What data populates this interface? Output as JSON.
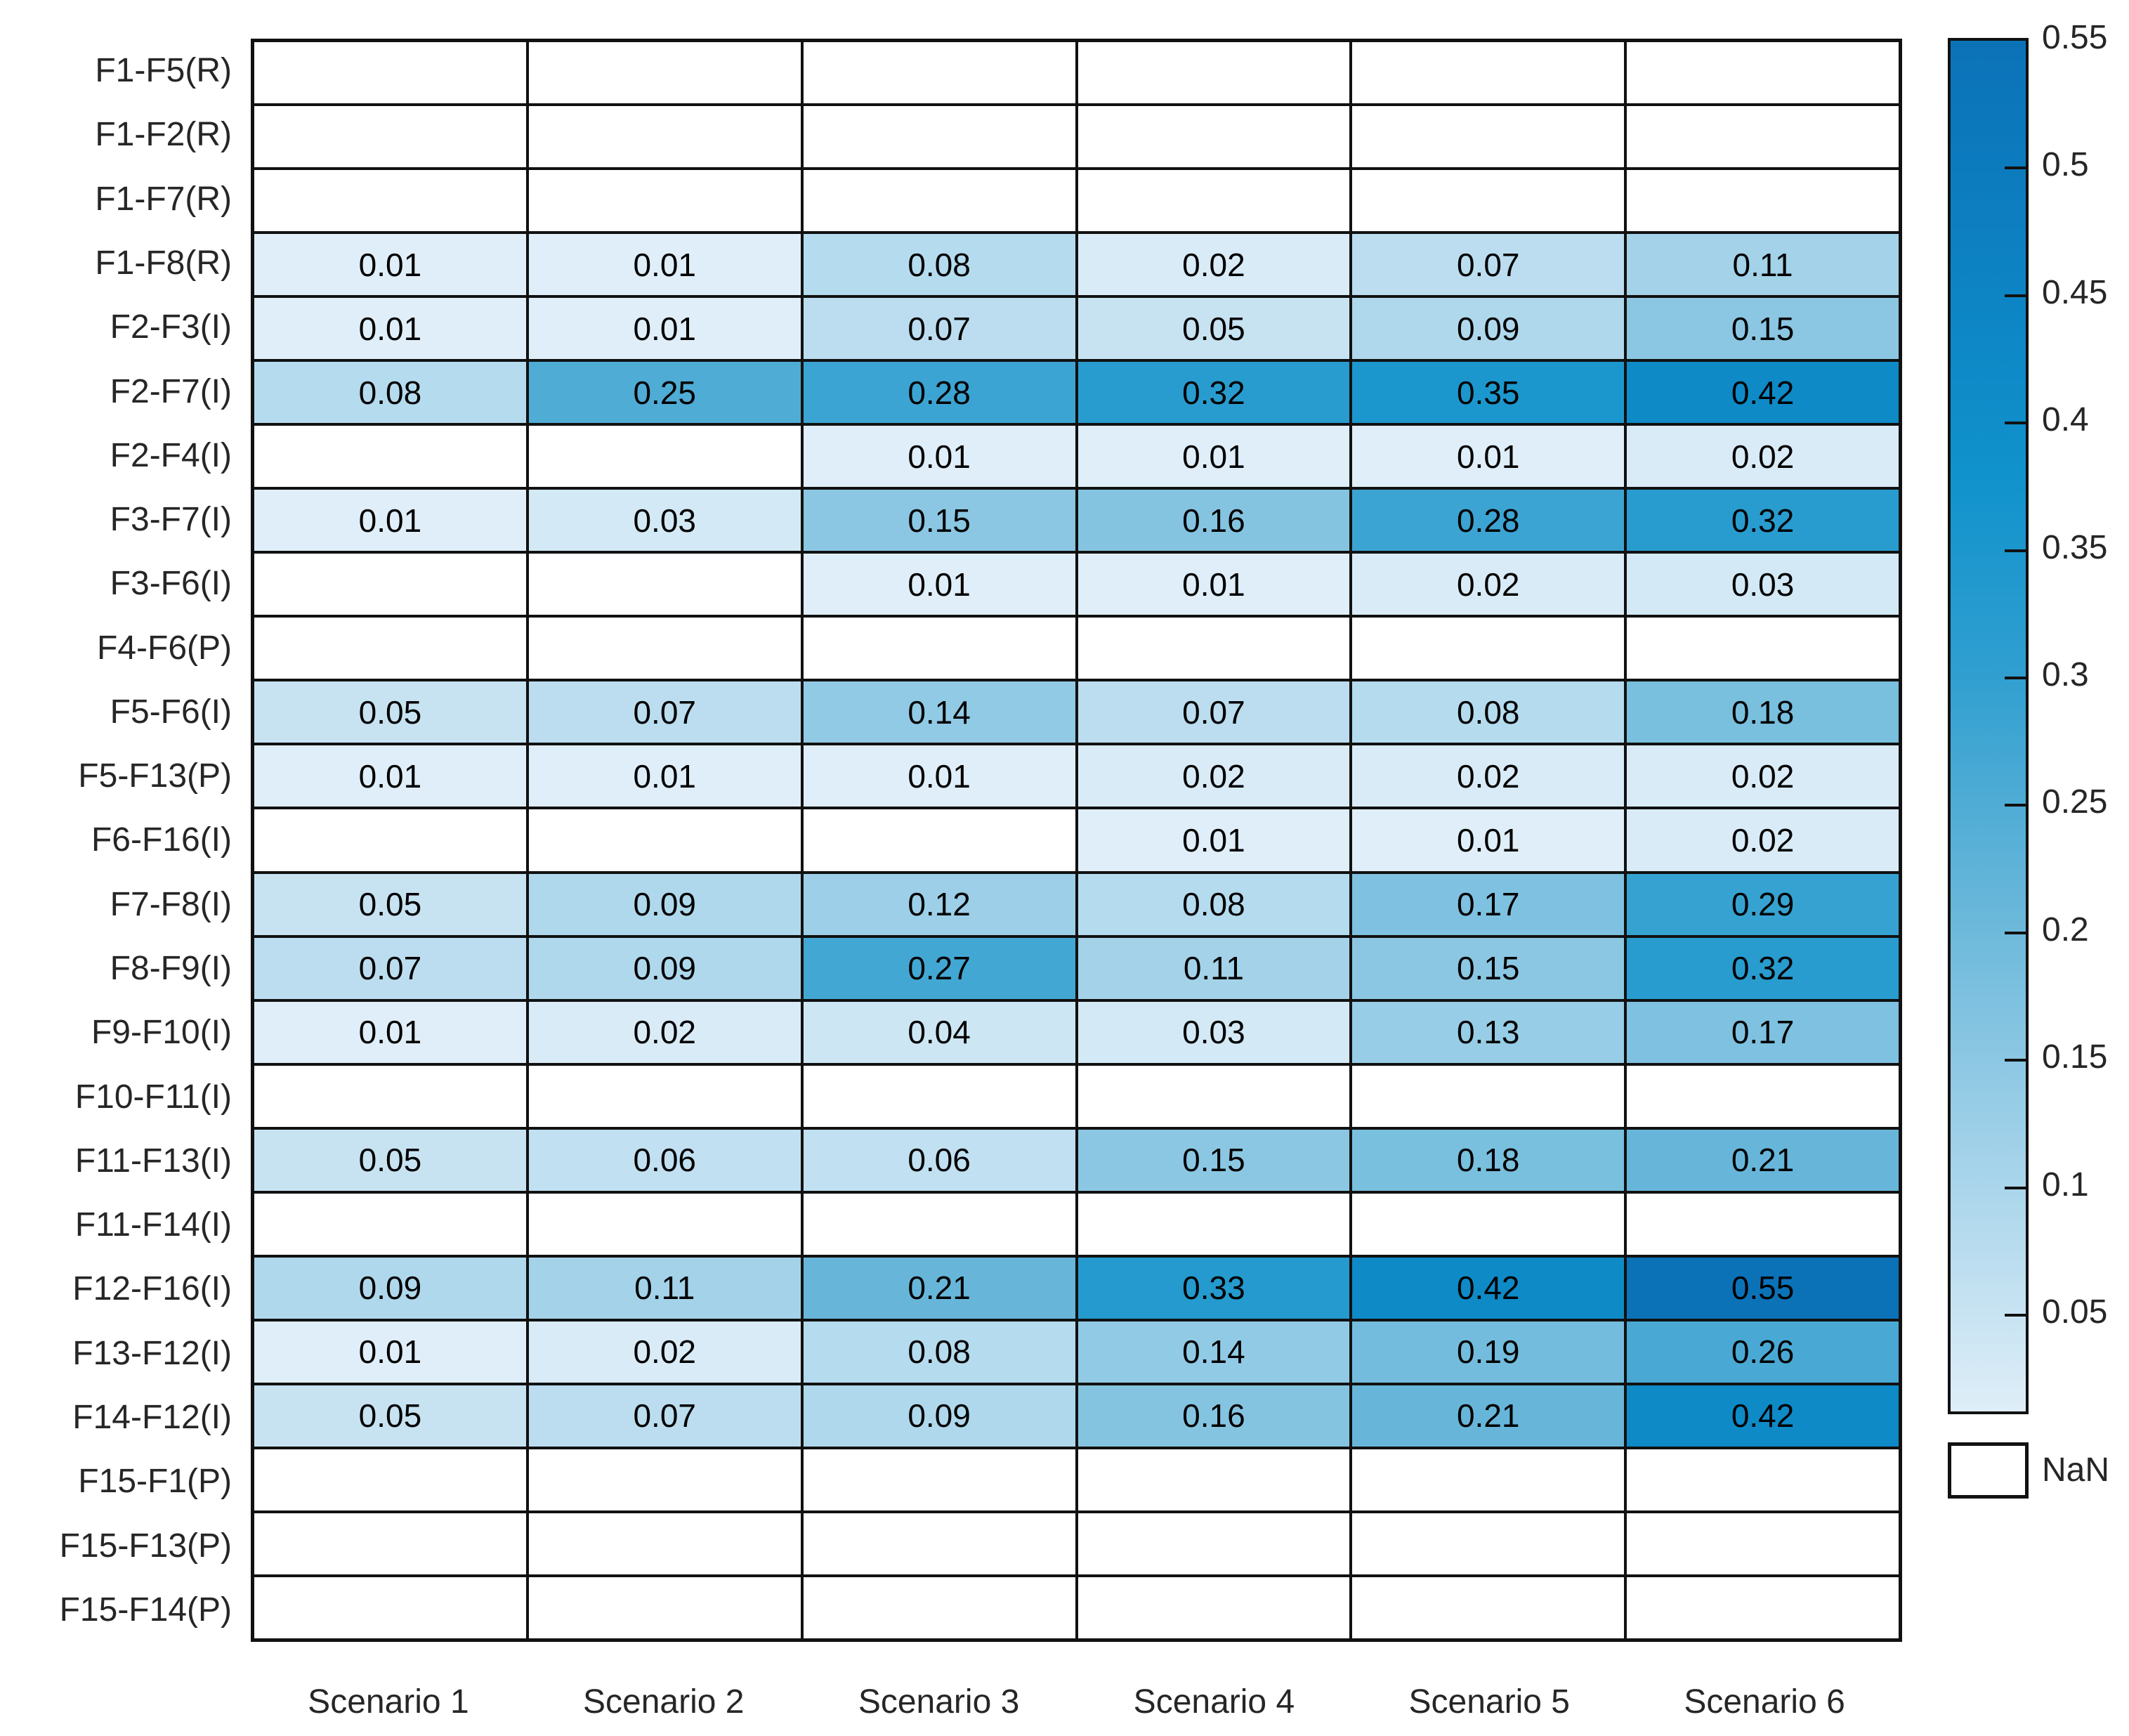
{
  "chart_data": {
    "type": "heatmap",
    "title": "",
    "xlabel": "",
    "ylabel": "",
    "x_categories": [
      "Scenario 1",
      "Scenario 2",
      "Scenario 3",
      "Scenario 4",
      "Scenario 5",
      "Scenario 6"
    ],
    "y_categories": [
      "F1-F5(R)",
      "F1-F2(R)",
      "F1-F7(R)",
      "F1-F8(R)",
      "F2-F3(I)",
      "F2-F7(I)",
      "F2-F4(I)",
      "F3-F7(I)",
      "F3-F6(I)",
      "F4-F6(P)",
      "F5-F6(I)",
      "F5-F13(P)",
      "F6-F16(I)",
      "F7-F8(I)",
      "F8-F9(I)",
      "F9-F10(I)",
      "F10-F11(I)",
      "F11-F13(I)",
      "F11-F14(I)",
      "F12-F16(I)",
      "F13-F12(I)",
      "F14-F12(I)",
      "F15-F1(P)",
      "F15-F13(P)",
      "F15-F14(P)"
    ],
    "values": [
      [
        null,
        null,
        null,
        null,
        null,
        null
      ],
      [
        null,
        null,
        null,
        null,
        null,
        null
      ],
      [
        null,
        null,
        null,
        null,
        null,
        null
      ],
      [
        0.01,
        0.01,
        0.08,
        0.02,
        0.07,
        0.11
      ],
      [
        0.01,
        0.01,
        0.07,
        0.05,
        0.09,
        0.15
      ],
      [
        0.08,
        0.25,
        0.28,
        0.32,
        0.35,
        0.42
      ],
      [
        null,
        null,
        0.01,
        0.01,
        0.01,
        0.02
      ],
      [
        0.01,
        0.03,
        0.15,
        0.16,
        0.28,
        0.32
      ],
      [
        null,
        null,
        0.01,
        0.01,
        0.02,
        0.03
      ],
      [
        null,
        null,
        null,
        null,
        null,
        null
      ],
      [
        0.05,
        0.07,
        0.14,
        0.07,
        0.08,
        0.18
      ],
      [
        0.01,
        0.01,
        0.01,
        0.02,
        0.02,
        0.02
      ],
      [
        null,
        null,
        null,
        0.01,
        0.01,
        0.02
      ],
      [
        0.05,
        0.09,
        0.12,
        0.08,
        0.17,
        0.29
      ],
      [
        0.07,
        0.09,
        0.27,
        0.11,
        0.15,
        0.32
      ],
      [
        0.01,
        0.02,
        0.04,
        0.03,
        0.13,
        0.17
      ],
      [
        null,
        null,
        null,
        null,
        null,
        null
      ],
      [
        0.05,
        0.06,
        0.06,
        0.15,
        0.18,
        0.21
      ],
      [
        null,
        null,
        null,
        null,
        null,
        null
      ],
      [
        0.09,
        0.11,
        0.21,
        0.33,
        0.42,
        0.55
      ],
      [
        0.01,
        0.02,
        0.08,
        0.14,
        0.19,
        0.26
      ],
      [
        0.05,
        0.07,
        0.09,
        0.16,
        0.21,
        0.42
      ],
      [
        null,
        null,
        null,
        null,
        null,
        null
      ],
      [
        null,
        null,
        null,
        null,
        null,
        null
      ],
      [
        null,
        null,
        null,
        null,
        null,
        null
      ]
    ],
    "value_format_decimals": 2,
    "nan_rendering": "blank white cell",
    "grid_line_color": "#111111",
    "colorbar": {
      "position": "right",
      "caxis": [
        0.01,
        0.55
      ],
      "ticks": [
        {
          "value": 0.55,
          "label": "0.55"
        },
        {
          "value": 0.5,
          "label": "0.5"
        },
        {
          "value": 0.45,
          "label": "0.45"
        },
        {
          "value": 0.4,
          "label": "0.4"
        },
        {
          "value": 0.35,
          "label": "0.35"
        },
        {
          "value": 0.3,
          "label": "0.3"
        },
        {
          "value": 0.25,
          "label": "0.25"
        },
        {
          "value": 0.2,
          "label": "0.2"
        },
        {
          "value": 0.15,
          "label": "0.15"
        },
        {
          "value": 0.1,
          "label": "0.1"
        },
        {
          "value": 0.05,
          "label": "0.05"
        }
      ],
      "nan_label": "NaN",
      "nan_color": "#ffffff"
    },
    "colormap_anchors": [
      {
        "value": 0.01,
        "color": "#dfeef8"
      },
      {
        "value": 0.05,
        "color": "#c7e3f2"
      },
      {
        "value": 0.1,
        "color": "#a9d5eb"
      },
      {
        "value": 0.15,
        "color": "#8bc7e3"
      },
      {
        "value": 0.2,
        "color": "#6db9db"
      },
      {
        "value": 0.25,
        "color": "#4facd5"
      },
      {
        "value": 0.3,
        "color": "#309fd0"
      },
      {
        "value": 0.38,
        "color": "#1092cc"
      },
      {
        "value": 0.45,
        "color": "#0d84c4"
      },
      {
        "value": 0.55,
        "color": "#0c72b8"
      }
    ]
  }
}
